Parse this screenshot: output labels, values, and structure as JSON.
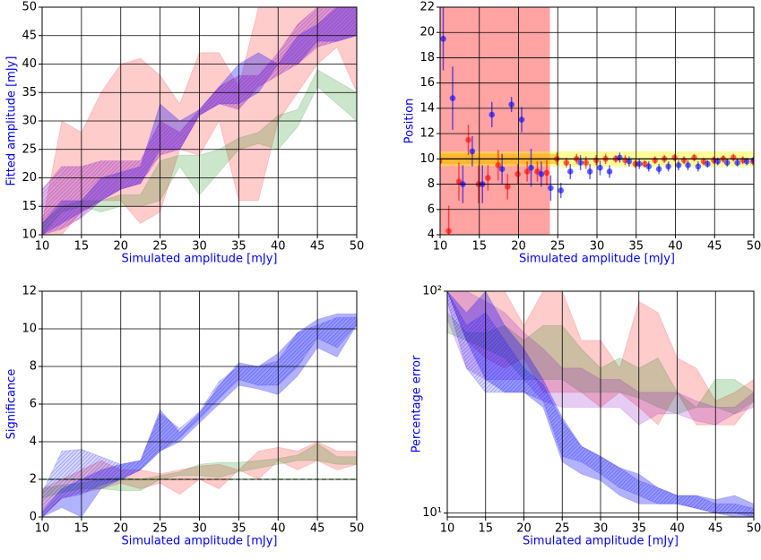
{
  "chart_data": [
    {
      "type": "band",
      "ylabel": "Fitted amplitude [mJy]",
      "xlabel": "Simulated amplitude [mJy]",
      "x": [
        10,
        12.5,
        15,
        17.5,
        20,
        22.5,
        25,
        27.5,
        30,
        32.5,
        35,
        37.5,
        40,
        42.5,
        45,
        47.5,
        50
      ],
      "xlim": [
        10,
        50
      ],
      "xticks": [
        10,
        15,
        20,
        25,
        30,
        35,
        40,
        45,
        50
      ],
      "ylim": [
        10,
        50
      ],
      "yticks": [
        10,
        15,
        20,
        25,
        30,
        35,
        40,
        45,
        50
      ],
      "grid": true,
      "log_y": false,
      "series": [
        {
          "color": "#ff0000",
          "opacity": 0.2,
          "hatch": false,
          "lower": [
            10,
            10,
            14,
            16,
            16,
            12,
            14,
            25,
            24,
            30,
            16,
            16,
            30,
            35,
            40,
            43,
            35
          ],
          "upper": [
            12,
            30,
            28,
            35,
            40,
            41,
            38,
            33,
            42,
            42,
            36,
            50,
            50,
            50,
            50,
            50,
            50
          ]
        },
        {
          "color": "#008000",
          "opacity": 0.2,
          "hatch": false,
          "lower": [
            10,
            14,
            15,
            14,
            15,
            15,
            16,
            22,
            17,
            21,
            25,
            26,
            25,
            29,
            36,
            33,
            30
          ],
          "upper": [
            12,
            15,
            16,
            16,
            17,
            17,
            23,
            24,
            24,
            25,
            27,
            28,
            31,
            32,
            39,
            37,
            35
          ]
        },
        {
          "color": "#0000ff",
          "opacity": 0.3,
          "hatch": false,
          "lower": [
            10,
            12,
            14,
            16,
            18,
            19,
            25,
            25,
            31,
            33,
            33,
            35,
            40,
            40,
            44,
            44,
            45
          ],
          "upper": [
            12,
            16,
            16,
            20,
            21,
            22,
            33,
            30,
            32,
            36,
            40,
            42,
            40,
            45,
            47,
            50,
            50
          ]
        },
        {
          "color": "#8000c0",
          "opacity": 0.25,
          "hatch": true,
          "lower": [
            10,
            11,
            13,
            16,
            18,
            19,
            24,
            25,
            31,
            33,
            32,
            36,
            38,
            40,
            43,
            44,
            45
          ],
          "upper": [
            18,
            22,
            22,
            23,
            23,
            23,
            30,
            28,
            32,
            36,
            38,
            38,
            42,
            47,
            50,
            50,
            50
          ]
        }
      ]
    },
    {
      "type": "errorbar",
      "ylabel": "Position",
      "xlabel": "Simulated amplitude [mJy]",
      "xlim": [
        10,
        50
      ],
      "xticks": [
        10,
        15,
        20,
        25,
        30,
        35,
        40,
        45,
        50
      ],
      "ylim": [
        4,
        22
      ],
      "yticks": [
        4,
        6,
        8,
        10,
        12,
        14,
        16,
        18,
        20,
        22
      ],
      "grid": true,
      "log_y": false,
      "xspan": {
        "range": [
          10,
          24
        ],
        "color": "#ff6666",
        "opacity": 0.6
      },
      "hbands": [
        {
          "range": [
            9.4,
            10.6
          ],
          "xrange": [
            10,
            50
          ],
          "color": "#ffff00",
          "opacity": 0.4
        },
        {
          "range": [
            9.6,
            10.4
          ],
          "xrange": [
            10,
            25
          ],
          "color": "#ffa500",
          "opacity": 0.5
        }
      ],
      "hline": {
        "value": 10,
        "color": "#000000",
        "dashed": false
      },
      "series": [
        {
          "color": "#ff0000",
          "x": [
            9.9,
            11.1,
            12.4,
            13.6,
            14.9,
            16.1,
            17.4,
            18.6,
            19.9,
            21.1,
            22.4,
            23.6,
            24.9,
            26.1,
            27.4,
            28.6,
            29.9,
            31.1,
            32.4,
            33.6,
            34.9,
            36.1,
            37.4,
            38.6,
            39.9,
            41.1,
            42.4,
            43.6,
            44.9,
            46.1,
            47.4,
            48.6,
            49.9
          ],
          "values": [
            9.8,
            4.3,
            8.2,
            11.5,
            8.0,
            8.5,
            9.5,
            7.8,
            8.8,
            9.0,
            9.0,
            8.9,
            10.0,
            9.7,
            10.0,
            9.7,
            9.9,
            10.0,
            10.0,
            9.9,
            9.6,
            9.6,
            9.9,
            10.0,
            10.1,
            9.9,
            10.1,
            9.8,
            9.9,
            10.0,
            10.1,
            9.9,
            9.8
          ],
          "errors": [
            1.0,
            2.0,
            1.5,
            1.2,
            1.5,
            1.0,
            1.2,
            1.0,
            0.8,
            0.8,
            0.8,
            1.0,
            0.5,
            0.4,
            0.4,
            0.5,
            0.4,
            0.4,
            0.3,
            0.4,
            0.3,
            0.3,
            0.3,
            0.3,
            0.3,
            0.3,
            0.3,
            0.3,
            0.3,
            0.3,
            0.3,
            0.3,
            0.3
          ]
        },
        {
          "color": "#0000ff",
          "x": [
            10.4,
            11.6,
            12.9,
            14.1,
            15.4,
            16.6,
            17.9,
            19.1,
            20.4,
            21.6,
            22.9,
            24.1,
            25.4,
            26.6,
            27.9,
            29.1,
            30.4,
            31.6,
            32.9,
            34.1,
            35.4,
            36.6,
            37.9,
            39.1,
            40.4,
            41.6,
            42.9,
            44.1,
            45.4,
            46.6,
            47.9,
            49.1,
            50.0
          ],
          "values": [
            19.5,
            14.8,
            8.0,
            10.6,
            8.0,
            13.5,
            9.2,
            14.3,
            13.1,
            9.3,
            8.8,
            7.7,
            7.5,
            9.0,
            9.7,
            9.0,
            9.3,
            9.0,
            10.1,
            9.8,
            9.6,
            9.4,
            9.2,
            9.4,
            9.5,
            9.5,
            9.4,
            9.6,
            9.8,
            9.7,
            9.7,
            9.8,
            9.9
          ],
          "errors": [
            2.5,
            2.5,
            1.5,
            1.2,
            1.5,
            1.0,
            1.2,
            0.6,
            1.0,
            1.5,
            1.0,
            1.0,
            0.6,
            0.6,
            0.6,
            0.6,
            0.6,
            0.5,
            0.4,
            0.4,
            0.4,
            0.4,
            0.4,
            0.4,
            0.4,
            0.4,
            0.4,
            0.3,
            0.3,
            0.3,
            0.3,
            0.3,
            0.3
          ]
        }
      ]
    },
    {
      "type": "band",
      "ylabel": "Significance",
      "xlabel": "Simulated amplitude [mJy]",
      "x": [
        10,
        12.5,
        15,
        17.5,
        20,
        22.5,
        25,
        27.5,
        30,
        32.5,
        35,
        37.5,
        40,
        42.5,
        45,
        47.5,
        50
      ],
      "xlim": [
        10,
        50
      ],
      "xticks": [
        10,
        15,
        20,
        25,
        30,
        35,
        40,
        45,
        50
      ],
      "ylim": [
        0,
        12
      ],
      "yticks": [
        0,
        2,
        4,
        6,
        8,
        10,
        12
      ],
      "grid": true,
      "log_y": false,
      "hline": {
        "value": 2,
        "color": "#008000",
        "dashed": true
      },
      "series": [
        {
          "color": "#ff0000",
          "opacity": 0.2,
          "hatch": false,
          "lower": [
            0,
            1,
            1.3,
            1.5,
            1.8,
            1.5,
            1.8,
            1.2,
            2,
            1.5,
            2.5,
            2,
            3,
            2.5,
            3,
            2.5,
            2.8
          ],
          "upper": [
            1.5,
            2,
            2.5,
            3,
            2.5,
            2.5,
            2.3,
            2.5,
            2.7,
            2.8,
            2.5,
            3.5,
            3.7,
            3.5,
            4,
            3.5,
            3.5
          ]
        },
        {
          "color": "#008000",
          "opacity": 0.2,
          "hatch": false,
          "lower": [
            1,
            1.3,
            1.5,
            1.5,
            1.4,
            1.4,
            2,
            2.2,
            2.2,
            2.1,
            2.4,
            2.6,
            2.8,
            3,
            3,
            2.8,
            2.8
          ],
          "upper": [
            1.5,
            1.7,
            1.8,
            2,
            2.1,
            2,
            2.2,
            2.4,
            2.8,
            2.9,
            2.9,
            3,
            3.1,
            3.3,
            3.9,
            3.2,
            3.2
          ]
        },
        {
          "color": "#0000ff",
          "opacity": 0.3,
          "hatch": false,
          "lower": [
            0,
            0.5,
            0,
            1.5,
            2,
            2.5,
            3.5,
            4,
            5,
            6,
            7,
            6.8,
            6.5,
            7.5,
            9,
            8.5,
            10.2
          ],
          "upper": [
            0.3,
            1.5,
            2,
            2.5,
            2.8,
            3,
            5.7,
            4.5,
            5.5,
            7,
            8.2,
            8,
            8.7,
            9.8,
            10.5,
            10.8,
            10.8
          ]
        },
        {
          "color": "#0000ff",
          "opacity": 0.15,
          "hatch": true,
          "lower": [
            0,
            1,
            1.2,
            1.7,
            2,
            2.5,
            3.5,
            4.2,
            5.2,
            6.3,
            7.3,
            7,
            7,
            8,
            9.5,
            9,
            10.2
          ],
          "upper": [
            1.3,
            3.5,
            3.6,
            3.2,
            2.8,
            3,
            5.5,
            4.7,
            5.6,
            7.2,
            8,
            8,
            8.3,
            9.8,
            10.2,
            10.6,
            10.6
          ]
        }
      ]
    },
    {
      "type": "band",
      "ylabel": "Percentage error",
      "xlabel": "Simulated amplitude [mJy]",
      "x": [
        10,
        12.5,
        15,
        17.5,
        20,
        22.5,
        25,
        27.5,
        30,
        32.5,
        35,
        37.5,
        40,
        42.5,
        45,
        47.5,
        50
      ],
      "xlim": [
        10,
        50
      ],
      "xticks": [
        10,
        15,
        20,
        25,
        30,
        35,
        40,
        45,
        50
      ],
      "ylim": [
        9.6,
        100
      ],
      "yticks": [
        {
          "value": 10,
          "label": "10¹"
        },
        {
          "value": 100,
          "label": "10²"
        }
      ],
      "grid": true,
      "log_y": true,
      "series": [
        {
          "color": "#ff0000",
          "opacity": 0.2,
          "hatch": false,
          "lower": [
            100,
            60,
            50,
            45,
            50,
            35,
            35,
            35,
            30,
            35,
            30,
            25,
            35,
            25,
            25,
            25,
            32
          ],
          "upper": [
            100,
            100,
            100,
            100,
            70,
            100,
            100,
            60,
            60,
            45,
            90,
            80,
            50,
            45,
            32,
            35,
            40
          ]
        },
        {
          "color": "#008000",
          "opacity": 0.2,
          "hatch": false,
          "lower": [
            65,
            60,
            55,
            50,
            40,
            40,
            40,
            35,
            35,
            35,
            33,
            30,
            28,
            30,
            30,
            28,
            32
          ],
          "upper": [
            80,
            65,
            65,
            70,
            60,
            70,
            70,
            55,
            45,
            50,
            45,
            50,
            35,
            30,
            40,
            40,
            35
          ]
        },
        {
          "color": "#8000c0",
          "opacity": 0.2,
          "hatch": false,
          "lower": [
            75,
            45,
            40,
            40,
            40,
            32,
            30,
            30,
            30,
            30,
            25,
            28,
            28,
            26,
            25,
            28,
            30
          ],
          "upper": [
            100,
            100,
            90,
            80,
            65,
            55,
            45,
            45,
            40,
            40,
            35,
            35,
            35,
            32,
            30,
            30,
            35
          ]
        },
        {
          "color": "#0000ff",
          "opacity": 0.3,
          "hatch": false,
          "lower": [
            100,
            60,
            40,
            35,
            35,
            30,
            17,
            15,
            14,
            12,
            11,
            11,
            11,
            10.5,
            10,
            9.6,
            9.6
          ],
          "upper": [
            100,
            80,
            100,
            70,
            55,
            40,
            27,
            20,
            18,
            16,
            15,
            13,
            12,
            12,
            11.5,
            12,
            11
          ]
        },
        {
          "color": "#0000ff",
          "opacity": 0.15,
          "hatch": true,
          "lower": [
            90,
            45,
            35,
            35,
            35,
            32,
            18,
            17,
            15,
            13,
            12,
            11,
            11,
            10.5,
            10,
            10,
            9.6
          ],
          "upper": [
            100,
            70,
            80,
            60,
            45,
            38,
            26,
            20,
            18,
            16,
            14,
            13,
            12,
            12,
            11,
            11,
            10.5
          ]
        }
      ]
    }
  ]
}
